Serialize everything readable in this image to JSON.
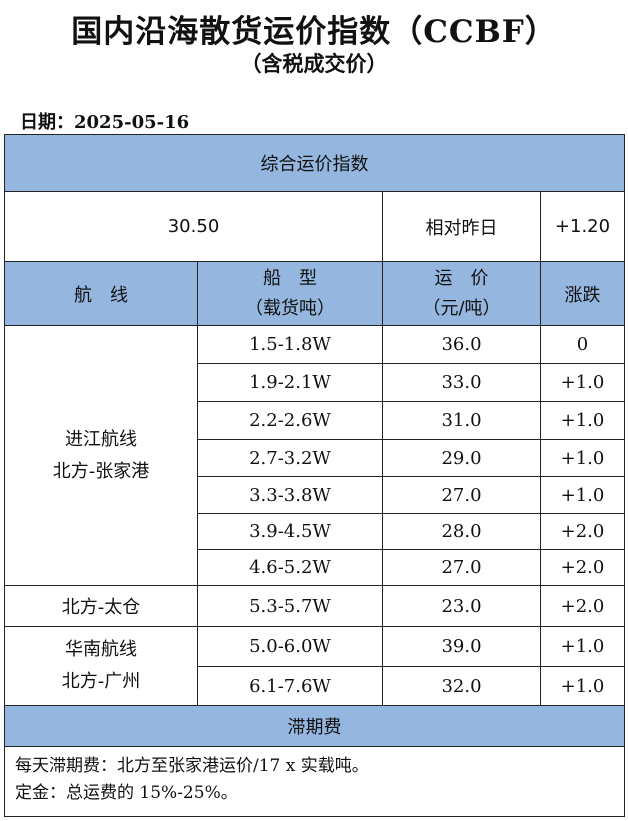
{
  "header": {
    "title": "国内沿海散货运价指数（CCBF）",
    "subtitle": "（含税成交价）"
  },
  "date": {
    "label": "日期：",
    "value": "2025-05-16"
  },
  "composite": {
    "section_title": "综合运价指数",
    "value": "30.50",
    "change_label": "相对昨日",
    "change": "+1.20"
  },
  "columns": {
    "route": "航　线",
    "ship_line1": "船　型",
    "ship_line2": "（载货吨）",
    "rate_line1": "运　价",
    "rate_line2": "（元/吨）",
    "change": "涨跌"
  },
  "routes": [
    {
      "line1": "进江航线",
      "line2": "北方-张家港"
    },
    {
      "line1": "北方-太仓"
    },
    {
      "line1": "华南航线",
      "line2": "北方-广州"
    }
  ],
  "rows": [
    {
      "ship": "1.5-1.8W",
      "rate": "36.0",
      "change": "0"
    },
    {
      "ship": "1.9-2.1W",
      "rate": "33.0",
      "change": "+1.0"
    },
    {
      "ship": "2.2-2.6W",
      "rate": "31.0",
      "change": "+1.0"
    },
    {
      "ship": "2.7-3.2W",
      "rate": "29.0",
      "change": "+1.0"
    },
    {
      "ship": "3.3-3.8W",
      "rate": "27.0",
      "change": "+1.0"
    },
    {
      "ship": "3.9-4.5W",
      "rate": "28.0",
      "change": "+2.0"
    },
    {
      "ship": "4.6-5.2W",
      "rate": "27.0",
      "change": "+2.0"
    },
    {
      "ship": "5.3-5.7W",
      "rate": "23.0",
      "change": "+2.0"
    },
    {
      "ship": "5.0-6.0W",
      "rate": "39.0",
      "change": "+1.0"
    },
    {
      "ship": "6.1-7.6W",
      "rate": "32.0",
      "change": "+1.0"
    }
  ],
  "demurrage": {
    "title": "滞期费",
    "note1": "每天滞期费：北方至张家港运价/17 x 实载吨。",
    "note2": "定金：总运费的 15%-25%。"
  }
}
